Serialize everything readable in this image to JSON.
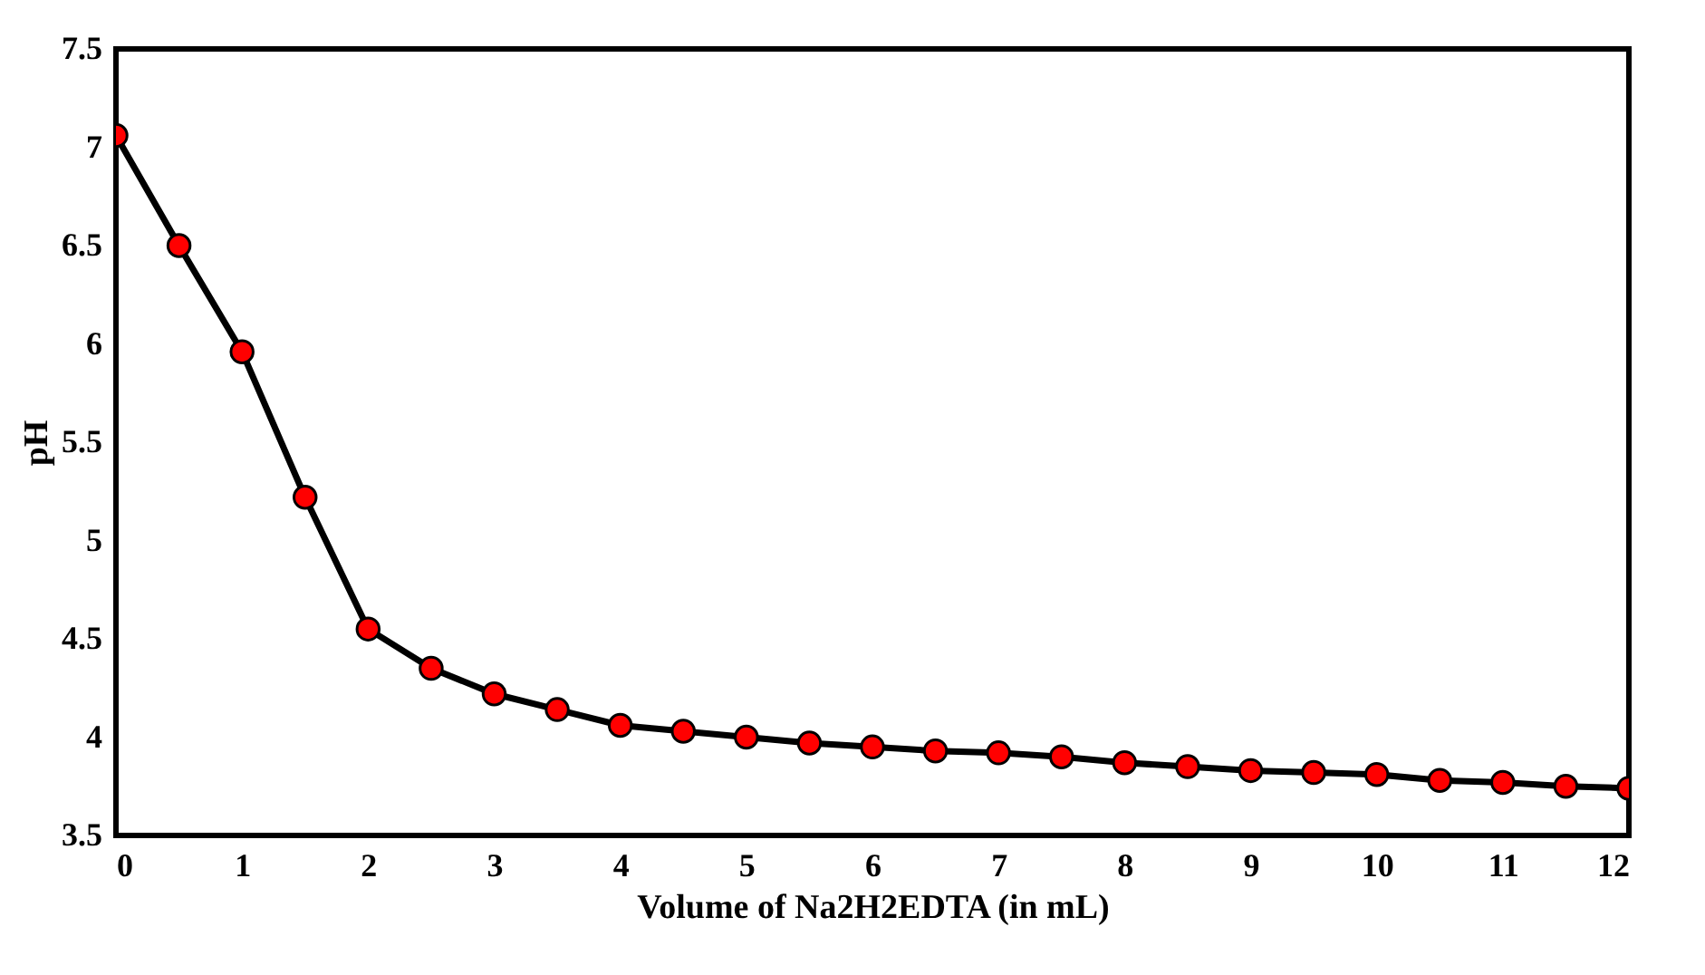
{
  "chart_data": {
    "type": "line",
    "xlabel": "Volume of Na2H2EDTA (in mL)",
    "ylabel": "pH",
    "x": [
      0,
      0.5,
      1,
      1.5,
      2,
      2.5,
      3,
      3.5,
      4,
      4.5,
      5,
      5.5,
      6,
      6.5,
      7,
      7.5,
      8,
      8.5,
      9,
      9.5,
      10,
      10.5,
      11,
      11.5,
      12
    ],
    "series": [
      {
        "color": "#000000",
        "values": [
          7.06,
          6.5,
          5.96,
          5.22,
          4.55,
          4.35,
          4.22,
          4.14,
          4.06,
          4.03,
          4.0,
          3.97,
          3.95,
          3.93,
          3.92,
          3.9,
          3.87,
          3.85,
          3.83,
          3.82,
          3.81,
          3.78,
          3.77,
          3.75,
          3.74
        ]
      }
    ],
    "marker": "circle",
    "line_style": "solid",
    "grid": false,
    "legend": false,
    "xlim": [
      0,
      12
    ],
    "xticks": [
      0,
      1,
      2,
      3,
      4,
      5,
      6,
      7,
      8,
      9,
      10,
      11,
      12
    ],
    "ylim": [
      3.5,
      7.5
    ],
    "yticks": [
      3.5,
      4,
      4.5,
      5,
      5.5,
      6,
      6.5,
      7,
      7.5
    ]
  }
}
